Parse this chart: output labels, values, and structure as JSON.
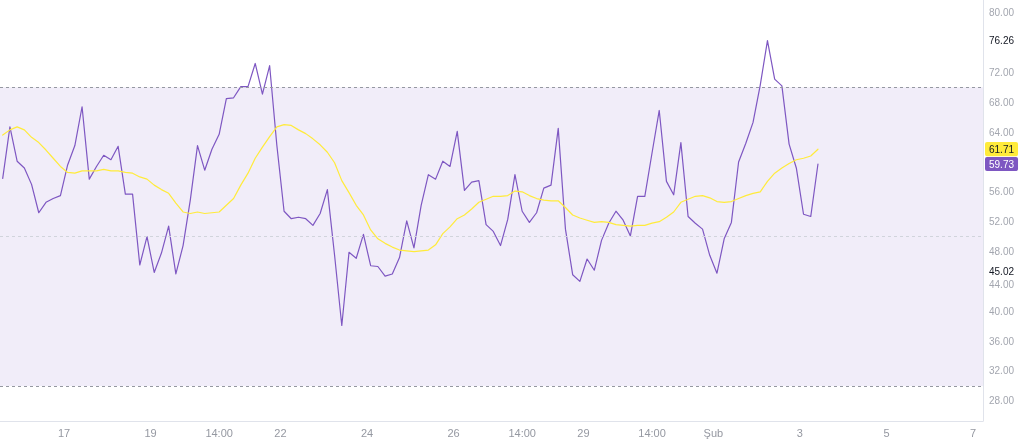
{
  "chart_data": {
    "type": "line",
    "x": [
      "--01-15T14:00",
      "--01-15T18:00",
      "--01-15T22:00",
      "--01-16T02:00",
      "--01-16T06:00",
      "--01-16T10:00",
      "--01-16T14:00",
      "--01-16T18:00",
      "--01-16T22:00",
      "--01-17T02:00",
      "--01-17T06:00",
      "--01-17T10:00",
      "--01-17T14:00",
      "--01-17T18:00",
      "--01-17T22:00",
      "--01-18T02:00",
      "--01-18T06:00",
      "--01-18T10:00",
      "--01-18T14:00",
      "--01-18T18:00",
      "--01-18T22:00",
      "--01-19T02:00",
      "--01-19T06:00",
      "--01-19T10:00",
      "--01-19T14:00",
      "--01-19T18:00",
      "--01-19T22:00",
      "--01-20T02:00",
      "--01-20T06:00",
      "--01-20T10:00",
      "--01-20T14:00",
      "--01-20T18:00",
      "--01-20T22:00",
      "--01-21T02:00",
      "--01-21T06:00",
      "--01-21T10:00",
      "--01-21T14:00",
      "--01-21T18:00",
      "--01-21T22:00",
      "--01-22T02:00",
      "--01-22T06:00",
      "--01-22T10:00",
      "--01-22T14:00",
      "--01-22T18:00",
      "--01-22T22:00",
      "--01-23T02:00",
      "--01-23T06:00",
      "--01-23T10:00",
      "--01-23T14:00",
      "--01-23T18:00",
      "--01-23T22:00",
      "--01-24T02:00",
      "--01-24T06:00",
      "--01-24T10:00",
      "--01-24T14:00",
      "--01-24T18:00",
      "--01-24T22:00",
      "--01-25T02:00",
      "--01-25T06:00",
      "--01-25T10:00",
      "--01-25T14:00",
      "--01-25T18:00",
      "--01-25T22:00",
      "--01-26T02:00",
      "--01-26T06:00",
      "--01-26T10:00",
      "--01-26T14:00",
      "--01-26T18:00",
      "--01-26T22:00",
      "--01-27T02:00",
      "--01-27T06:00",
      "--01-27T10:00",
      "--01-27T14:00",
      "--01-27T18:00",
      "--01-27T22:00",
      "--01-28T02:00",
      "--01-28T06:00",
      "--01-28T10:00",
      "--01-28T14:00",
      "--01-28T18:00",
      "--01-28T22:00",
      "--01-29T02:00",
      "--01-29T06:00",
      "--01-29T10:00",
      "--01-29T14:00",
      "--01-29T18:00",
      "--01-29T22:00",
      "--01-30T02:00",
      "--01-30T06:00",
      "--01-30T10:00",
      "--01-30T14:00",
      "--01-30T18:00",
      "--01-30T22:00",
      "--01-31T02:00",
      "--01-31T06:00",
      "--01-31T10:00",
      "--01-31T14:00",
      "--01-31T18:00",
      "--01-31T22:00",
      "--02-01T02:00",
      "--02-01T06:00",
      "--02-01T10:00",
      "--02-01T14:00",
      "--02-01T18:00",
      "--02-01T22:00",
      "--02-02T02:00",
      "--02-02T06:00",
      "--02-02T10:00",
      "--02-02T14:00",
      "--02-02T18:00",
      "--02-02T22:00",
      "--02-03T02:00",
      "--02-03T06:00",
      "--02-03T10:00"
    ],
    "series": [
      {
        "color": "#7e57c2",
        "values": [
          57.8,
          64.7,
          60.1,
          59.2,
          57.0,
          53.2,
          54.6,
          55.1,
          55.5,
          59.6,
          62.2,
          67.4,
          57.7,
          59.4,
          60.9,
          60.3,
          62.1,
          55.7,
          55.7,
          46.2,
          50.0,
          45.2,
          47.8,
          51.4,
          45.0,
          48.8,
          54.9,
          62.2,
          58.9,
          61.7,
          63.7,
          68.5,
          68.6,
          70.1,
          70.1,
          73.2,
          69.1,
          72.9,
          62.2,
          53.4,
          52.4,
          52.6,
          52.4,
          51.5,
          53.1,
          56.3,
          47.5,
          38.1,
          47.9,
          47.1,
          50.3,
          46.1,
          46.0,
          44.7,
          45.0,
          47.2,
          52.1,
          48.5,
          54.2,
          58.3,
          57.7,
          60.1,
          59.4,
          64.1,
          56.2,
          57.3,
          57.5,
          51.6,
          50.7,
          48.8,
          52.3,
          58.3,
          53.4,
          51.9,
          53.2,
          56.5,
          56.9,
          64.5,
          51.0,
          44.9,
          44.0,
          47.0,
          45.5,
          49.5,
          51.8,
          53.4,
          52.2,
          50.1,
          55.4,
          55.4,
          61.2,
          66.9,
          57.4,
          55.6,
          62.6,
          52.7,
          51.8,
          51.0,
          47.5,
          45.1,
          49.7,
          51.9,
          60.0,
          62.5,
          65.3,
          70.3,
          76.26,
          71.1,
          70.2,
          62.4,
          59.2,
          53.0,
          52.7,
          59.73
        ]
      },
      {
        "color": "#ffeb3b",
        "values": [
          63.6,
          64.3,
          64.7,
          64.3,
          63.3,
          62.6,
          61.6,
          60.5,
          59.4,
          58.6,
          58.5,
          58.8,
          58.8,
          58.8,
          59.0,
          58.8,
          58.8,
          58.6,
          58.5,
          58.0,
          57.7,
          56.9,
          56.3,
          55.8,
          54.5,
          53.3,
          53.1,
          53.3,
          53.1,
          53.2,
          53.3,
          54.2,
          55.1,
          56.9,
          58.5,
          60.5,
          62.0,
          63.4,
          64.7,
          65.0,
          64.9,
          64.3,
          63.8,
          63.1,
          62.3,
          61.3,
          59.9,
          57.5,
          55.9,
          54.2,
          52.9,
          50.9,
          49.7,
          49.1,
          48.6,
          48.2,
          48.1,
          48.0,
          48.1,
          48.2,
          48.9,
          50.4,
          51.3,
          52.4,
          52.9,
          53.7,
          54.6,
          55.0,
          55.4,
          55.4,
          55.5,
          56.1,
          56.0,
          55.5,
          55.1,
          54.9,
          54.8,
          54.8,
          53.9,
          52.9,
          52.5,
          52.2,
          51.9,
          52.0,
          51.9,
          51.6,
          51.5,
          51.4,
          51.5,
          51.5,
          51.8,
          52.0,
          52.6,
          53.3,
          54.6,
          55.0,
          55.4,
          55.5,
          55.2,
          54.7,
          54.6,
          54.7,
          55.1,
          55.5,
          55.8,
          56.0,
          57.4,
          58.5,
          59.2,
          59.8,
          60.3,
          60.5,
          60.8,
          61.71
        ]
      }
    ],
    "xlim": [
      "--01-15T12:30",
      "--02-07T05:30"
    ],
    "xticks": [
      {
        "value": "--01-17",
        "label": "17"
      },
      {
        "value": "--01-19",
        "label": "19"
      },
      {
        "value": "--01-20T14:00",
        "label": "14:00"
      },
      {
        "value": "--01-22",
        "label": "22"
      },
      {
        "value": "--01-24",
        "label": "24"
      },
      {
        "value": "--01-26",
        "label": "26"
      },
      {
        "value": "--01-27T14:00",
        "label": "14:00"
      },
      {
        "value": "--01-29",
        "label": "29"
      },
      {
        "value": "--01-30T14:00",
        "label": "14:00"
      },
      {
        "value": "--02-01",
        "label": "Şub"
      },
      {
        "value": "--02-03",
        "label": "3"
      },
      {
        "value": "--02-05",
        "label": "5"
      },
      {
        "value": "--02-07",
        "label": "7"
      }
    ],
    "ylim": [
      25.3,
      81.7
    ],
    "yticks": [
      {
        "value": 28,
        "label": "28.00"
      },
      {
        "value": 32,
        "label": "32.00"
      },
      {
        "value": 36,
        "label": "36.00"
      },
      {
        "value": 40,
        "label": "40.00"
      },
      {
        "value": 44,
        "label": "44.00"
      },
      45.02,
      {
        "value": 48,
        "label": "48.00"
      },
      {
        "value": 52,
        "label": "52.00"
      },
      {
        "value": 56,
        "label": "56.00"
      },
      59.73,
      61.71,
      {
        "value": 64,
        "label": "64.00"
      },
      {
        "value": 68,
        "label": "68.00"
      },
      {
        "value": 72,
        "label": "72.00"
      },
      76.26,
      {
        "value": 80,
        "label": "80.00"
      }
    ],
    "ref_lines": [
      {
        "axis": "y",
        "value": 70,
        "color": "#9598a1",
        "line_style": "dashed"
      },
      {
        "axis": "y",
        "value": 50,
        "color": "#d1d4dc",
        "line_style": "dashed"
      },
      {
        "axis": "y",
        "value": 30,
        "color": "#9598a1",
        "line_style": "dashed"
      }
    ],
    "bands": [
      {
        "axis": "y",
        "from": 30,
        "to": 70,
        "color": "#f1edf9"
      }
    ]
  }
}
